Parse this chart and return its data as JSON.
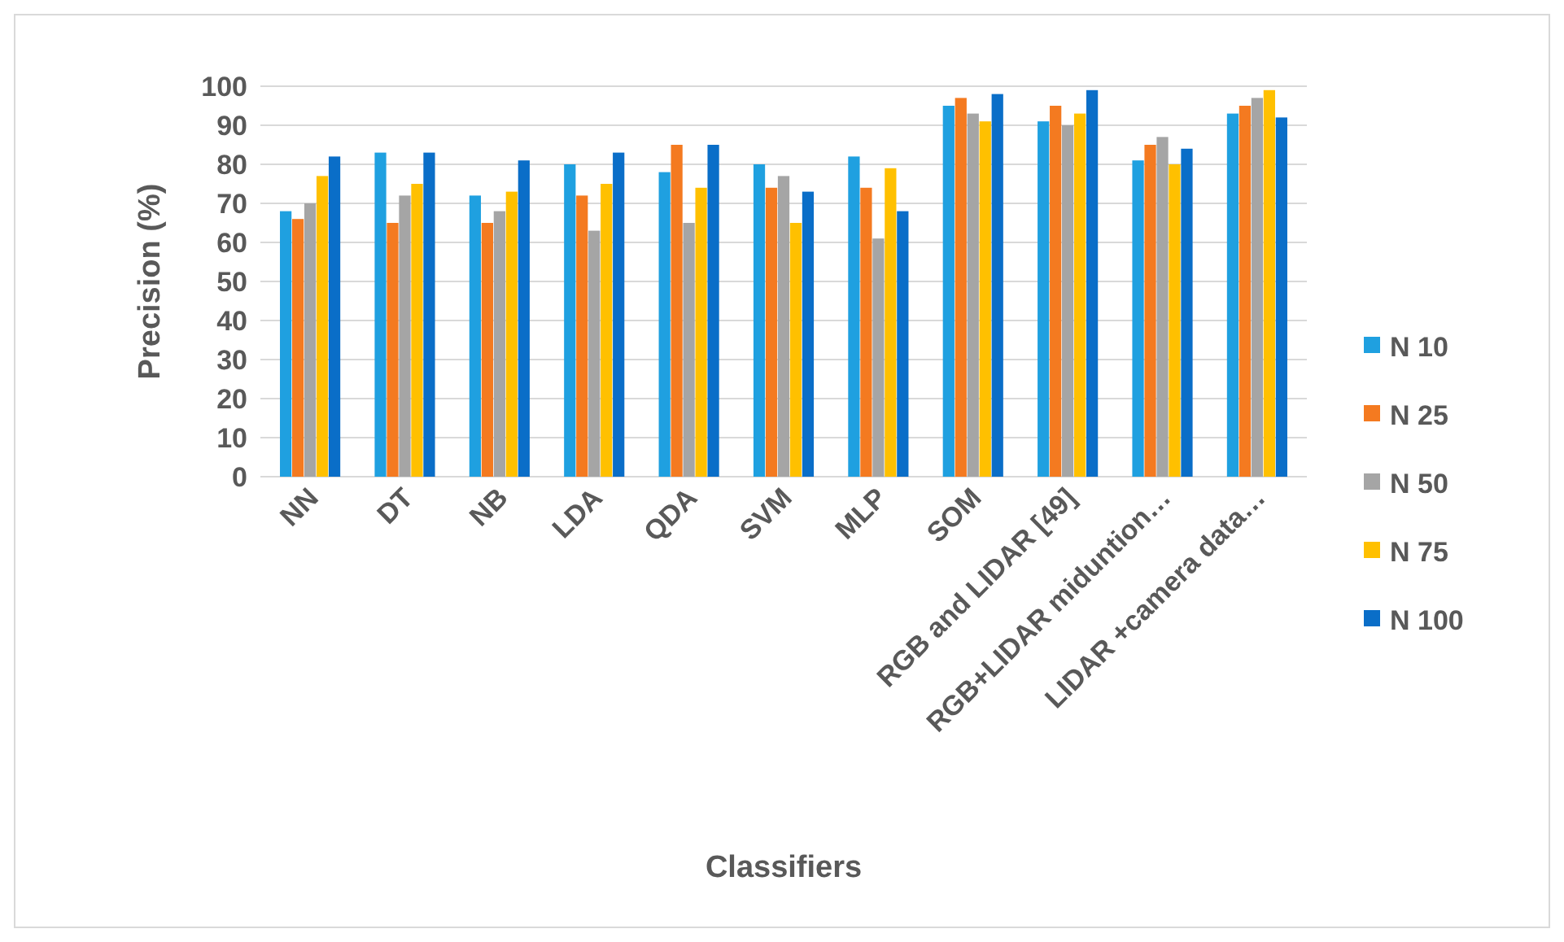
{
  "chart_data": {
    "type": "bar",
    "xlabel": "Classifiers",
    "ylabel": "Precision (%)",
    "categories": [
      "NN",
      "DT",
      "NB",
      "LDA",
      "QDA",
      "SVM",
      "MLP",
      "SOM",
      "RGB and LIDAR [49]",
      "RGB+LIDAR miduntion…",
      "LIDAR +camera data…"
    ],
    "series": [
      {
        "name": "N 10",
        "color": "#1fa0e0",
        "values": [
          68,
          83,
          72,
          80,
          78,
          80,
          82,
          95,
          91,
          81,
          93
        ]
      },
      {
        "name": "N 25",
        "color": "#f47a20",
        "values": [
          66,
          65,
          65,
          72,
          85,
          74,
          74,
          97,
          95,
          85,
          95
        ]
      },
      {
        "name": "N 50",
        "color": "#a5a5a5",
        "values": [
          70,
          72,
          68,
          63,
          65,
          77,
          61,
          93,
          90,
          87,
          97
        ]
      },
      {
        "name": "N 75",
        "color": "#ffc000",
        "values": [
          77,
          75,
          73,
          75,
          74,
          65,
          79,
          91,
          93,
          80,
          99
        ]
      },
      {
        "name": "N 100",
        "color": "#0a6ec8",
        "values": [
          82,
          83,
          81,
          83,
          85,
          73,
          68,
          98,
          99,
          84,
          92
        ]
      }
    ],
    "ylim": [
      0,
      100
    ],
    "yticks": [
      0,
      10,
      20,
      30,
      40,
      50,
      60,
      70,
      80,
      90,
      100
    ],
    "grid": "y",
    "legend": "right"
  }
}
